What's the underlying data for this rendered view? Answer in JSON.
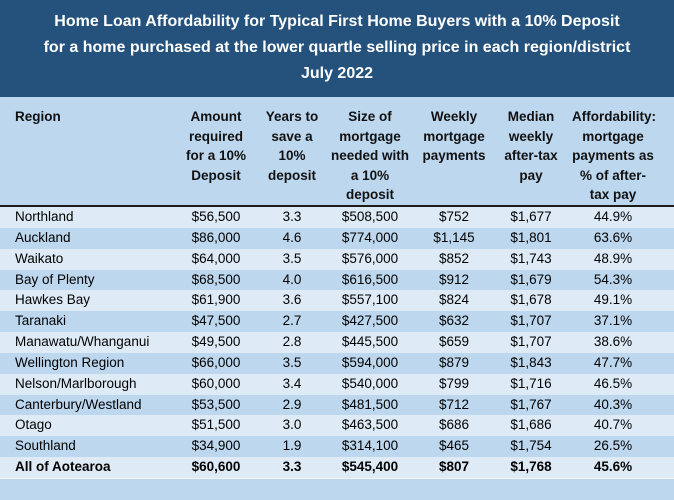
{
  "title": {
    "line1": "Home Loan Affordability for Typical First Home Buyers with a 10% Deposit",
    "line2": "for a home purchased at the lower quartle selling price in each region/district",
    "line3": "July 2022"
  },
  "colors": {
    "title_background": "#24527C",
    "title_text": "#FFFFFF",
    "header_background": "#BDD7EE",
    "row_light": "#DEEBF7",
    "row_shaded": "#BDD7EE",
    "header_rule": "#1C1C1C",
    "body_text": "#000000"
  },
  "chart_data": {
    "type": "table",
    "title": "Home Loan Affordability for Typical First Home Buyers with a 10% Deposit for a home purchased at the lower quartle selling price in each region/district July 2022",
    "columns": [
      {
        "key": "region",
        "label": "Region",
        "header_lines": [
          "Region"
        ]
      },
      {
        "key": "deposit-amount",
        "label": "Amount required for a 10% Deposit",
        "header_lines": [
          "Amount",
          "required",
          "for a 10%",
          "Deposit"
        ]
      },
      {
        "key": "years-to-save",
        "label": "Years to save a 10% deposit",
        "header_lines": [
          "Years to",
          "save a",
          "10%",
          "deposit"
        ]
      },
      {
        "key": "mortgage-size",
        "label": "Size of mortgage needed with a 10% deposit",
        "header_lines": [
          "Size of",
          "mortgage",
          "needed with",
          "a 10%",
          "deposit"
        ]
      },
      {
        "key": "weekly-payments",
        "label": "Weekly mortgage payments",
        "header_lines": [
          "Weekly",
          "mortgage",
          "payments"
        ]
      },
      {
        "key": "median-pay",
        "label": "Median weekly after-tax pay",
        "header_lines": [
          "Median",
          "weekly",
          "after-tax",
          "pay"
        ]
      },
      {
        "key": "affordability",
        "label": "Affordability: mortgage payments as % of after-tax pay",
        "header_lines": [
          "Affordability:",
          "mortgage",
          "payments as",
          "% of after-",
          "tax pay"
        ]
      }
    ],
    "rows": [
      {
        "bold": false,
        "values": [
          "Northland",
          "$56,500",
          "3.3",
          "$508,500",
          "$752",
          "$1,677",
          "44.9%"
        ]
      },
      {
        "bold": false,
        "values": [
          "Auckland",
          "$86,000",
          "4.6",
          "$774,000",
          "$1,145",
          "$1,801",
          "63.6%"
        ]
      },
      {
        "bold": false,
        "values": [
          "Waikato",
          "$64,000",
          "3.5",
          "$576,000",
          "$852",
          "$1,743",
          "48.9%"
        ]
      },
      {
        "bold": false,
        "values": [
          "Bay of Plenty",
          "$68,500",
          "4.0",
          "$616,500",
          "$912",
          "$1,679",
          "54.3%"
        ]
      },
      {
        "bold": false,
        "values": [
          "Hawkes Bay",
          "$61,900",
          "3.6",
          "$557,100",
          "$824",
          "$1,678",
          "49.1%"
        ]
      },
      {
        "bold": false,
        "values": [
          "Taranaki",
          "$47,500",
          "2.7",
          "$427,500",
          "$632",
          "$1,707",
          "37.1%"
        ]
      },
      {
        "bold": false,
        "values": [
          "Manawatu/Whanganui",
          "$49,500",
          "2.8",
          "$445,500",
          "$659",
          "$1,707",
          "38.6%"
        ]
      },
      {
        "bold": false,
        "values": [
          "Wellington Region",
          "$66,000",
          "3.5",
          "$594,000",
          "$879",
          "$1,843",
          "47.7%"
        ]
      },
      {
        "bold": false,
        "values": [
          "Nelson/Marlborough",
          "$60,000",
          "3.4",
          "$540,000",
          "$799",
          "$1,716",
          "46.5%"
        ]
      },
      {
        "bold": false,
        "values": [
          "Canterbury/Westland",
          "$53,500",
          "2.9",
          "$481,500",
          "$712",
          "$1,767",
          "40.3%"
        ]
      },
      {
        "bold": false,
        "values": [
          "Otago",
          "$51,500",
          "3.0",
          "$463,500",
          "$686",
          "$1,686",
          "40.7%"
        ]
      },
      {
        "bold": false,
        "values": [
          "Southland",
          "$34,900",
          "1.9",
          "$314,100",
          "$465",
          "$1,754",
          "26.5%"
        ]
      },
      {
        "bold": true,
        "values": [
          "All of Aotearoa",
          "$60,600",
          "3.3",
          "$545,400",
          "$807",
          "$1,768",
          "45.6%"
        ]
      }
    ]
  }
}
